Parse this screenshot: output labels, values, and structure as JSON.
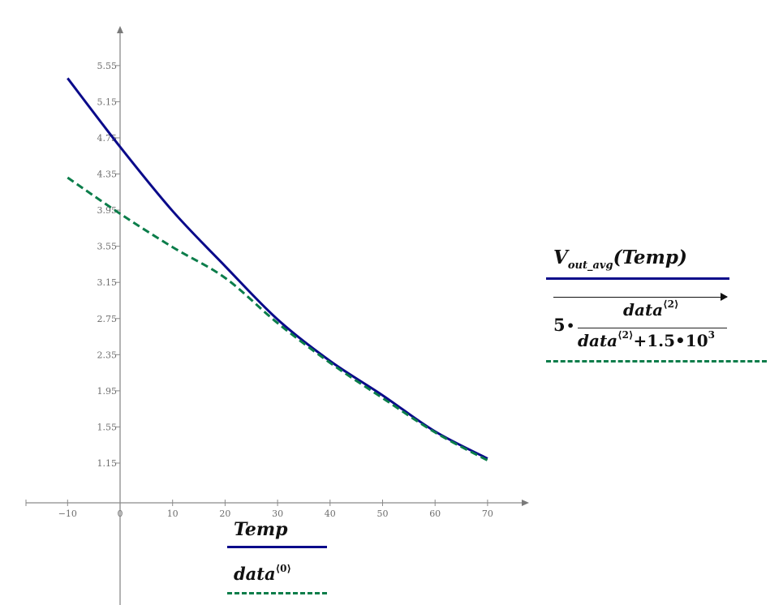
{
  "chart_data": {
    "type": "line",
    "title": "",
    "xlabel": "Temp",
    "xlabel_alt": "data(0)",
    "ylabel": "V_out_avg(Temp)",
    "ylabel_alt": "5·data(2)/(data(2)+1.5·10^3)",
    "x_ticks": [
      "-10",
      "0",
      "10",
      "20",
      "30",
      "40",
      "50",
      "60",
      "70"
    ],
    "y_ticks": [
      "5.55",
      "5.15",
      "4.75",
      "4.35",
      "3.95",
      "3.55",
      "3.15",
      "2.75",
      "2.35",
      "1.95",
      "1.55",
      "1.15"
    ],
    "xlim": [
      -18,
      78
    ],
    "ylim": [
      0.7,
      5.98
    ],
    "grid": false,
    "legend_position": "axis-labels",
    "x": [
      -10,
      0,
      10,
      20,
      30,
      40,
      50,
      60,
      70
    ],
    "series": [
      {
        "name": "V_out_avg(Temp)",
        "style": "solid",
        "color": "#0a0a8a",
        "values": [
          5.41,
          4.65,
          3.94,
          3.33,
          2.74,
          2.28,
          1.9,
          1.5,
          1.2
        ]
      },
      {
        "name": "5·data(2)/(data(2)+1.5·10^3) vs data(0)",
        "style": "dashed",
        "color": "#0b7d4a",
        "values": [
          4.31,
          3.91,
          3.54,
          3.2,
          2.7,
          2.26,
          1.87,
          1.49,
          1.18
        ]
      }
    ]
  },
  "legend": {
    "x_primary": "Temp",
    "x_secondary_base": "data",
    "x_secondary_sup": "⟨0⟩",
    "y_primary_base": "V",
    "y_primary_sub": "out_avg",
    "y_primary_arg": "(Temp)",
    "formula": {
      "coef": "5",
      "dot": "•",
      "num_base": "data",
      "num_sup": "⟨2⟩",
      "den_base": "data",
      "den_sup": "⟨2⟩",
      "den_rest": "+1.5•10",
      "den_exp": "3"
    }
  }
}
